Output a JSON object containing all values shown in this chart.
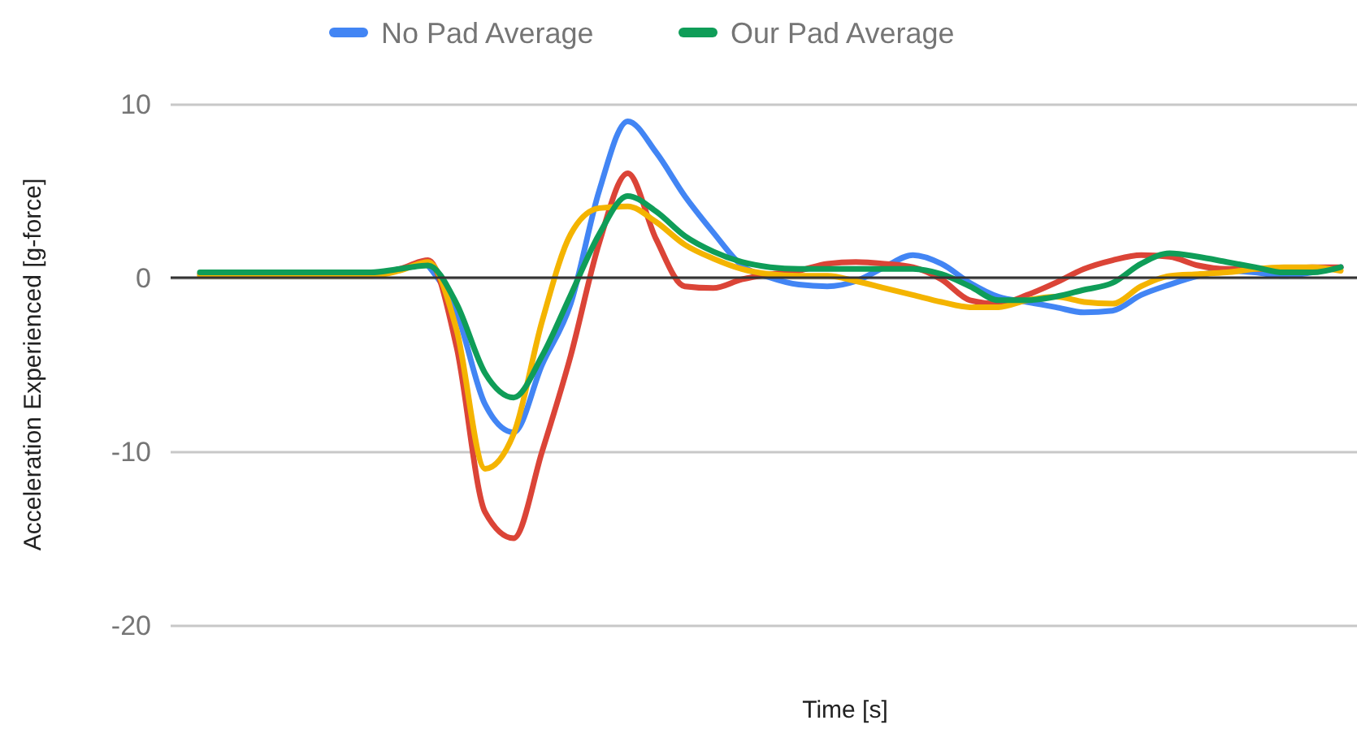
{
  "chart_data": {
    "type": "line",
    "xlabel": "Time [s]",
    "ylabel": "Acceleration Experienced [g-force]",
    "categories": [
      null,
      null,
      null,
      null,
      null,
      null,
      null,
      null,
      null,
      null,
      null,
      null,
      null,
      null,
      null,
      null,
      null,
      null,
      null,
      null,
      null,
      null,
      null,
      null,
      null,
      null,
      null,
      null,
      null,
      null,
      null,
      null,
      null,
      null,
      null,
      null,
      null,
      null,
      null,
      null,
      null
    ],
    "ylim": [
      -20,
      10
    ],
    "yticks": [
      -20,
      -10,
      0,
      10
    ],
    "grid": "y",
    "legend": "top",
    "tick_labels": "y",
    "marker": "none",
    "line_style": "solid",
    "series": [
      {
        "name": "No Pad Average",
        "color": "#4285f4",
        "values": [
          null,
          null,
          null,
          null,
          null,
          null,
          null,
          null,
          0.7,
          -2,
          -7.3,
          -8.9,
          -5,
          -1.5,
          5,
          9,
          7.2,
          4.7,
          2.6,
          0.7,
          0,
          -0.4,
          -0.5,
          -0.2,
          0.6,
          1.3,
          0.8,
          -0.3,
          -1.1,
          -1.4,
          -1.7,
          -2,
          -1.9,
          -1,
          -0.4,
          0.1,
          0.4,
          0.3,
          0.1,
          0.3,
          0.6
        ]
      },
      {
        "color": "#db4437",
        "values": [
          0.2,
          0.2,
          0.2,
          0.2,
          0.2,
          0.2,
          0.2,
          0.5,
          1,
          -4,
          -13.5,
          -15,
          -10,
          -4.5,
          2,
          6,
          2.2,
          -0.5,
          -0.6,
          -0.1,
          0.2,
          0.4,
          0.8,
          0.9,
          0.8,
          0.6,
          -0.1,
          -1.3,
          -1.5,
          -1,
          -0.3,
          0.5,
          1,
          1.3,
          1.2,
          0.7,
          0.5,
          0.5,
          0.5,
          0.6,
          0.6
        ]
      },
      {
        "color": "#f4b400",
        "values": [
          0.1,
          0.1,
          0.1,
          0.1,
          0.1,
          0.1,
          0.1,
          0.4,
          0.9,
          -3,
          -11,
          -9,
          -2.5,
          2.5,
          4,
          4.1,
          3.2,
          1.9,
          1.1,
          0.5,
          0.2,
          0.1,
          0.1,
          -0.2,
          -0.6,
          -1,
          -1.4,
          -1.7,
          -1.7,
          -1.3,
          -1.1,
          -1.4,
          -1.5,
          -0.5,
          0.1,
          0.2,
          0.3,
          0.5,
          0.6,
          0.6,
          0.4
        ]
      },
      {
        "name": "Our Pad Average",
        "color": "#0f9d58",
        "values": [
          0.3,
          0.3,
          0.3,
          0.3,
          0.3,
          0.3,
          0.3,
          0.5,
          0.7,
          -1.5,
          -5.5,
          -6.9,
          -4.5,
          -1,
          2.5,
          4.7,
          3.8,
          2.4,
          1.5,
          0.9,
          0.6,
          0.5,
          0.5,
          0.5,
          0.5,
          0.5,
          0.2,
          -0.5,
          -1.3,
          -1.3,
          -1.1,
          -0.7,
          -0.3,
          0.8,
          1.4,
          1.2,
          0.9,
          0.6,
          0.3,
          0.3,
          0.6
        ]
      }
    ]
  }
}
